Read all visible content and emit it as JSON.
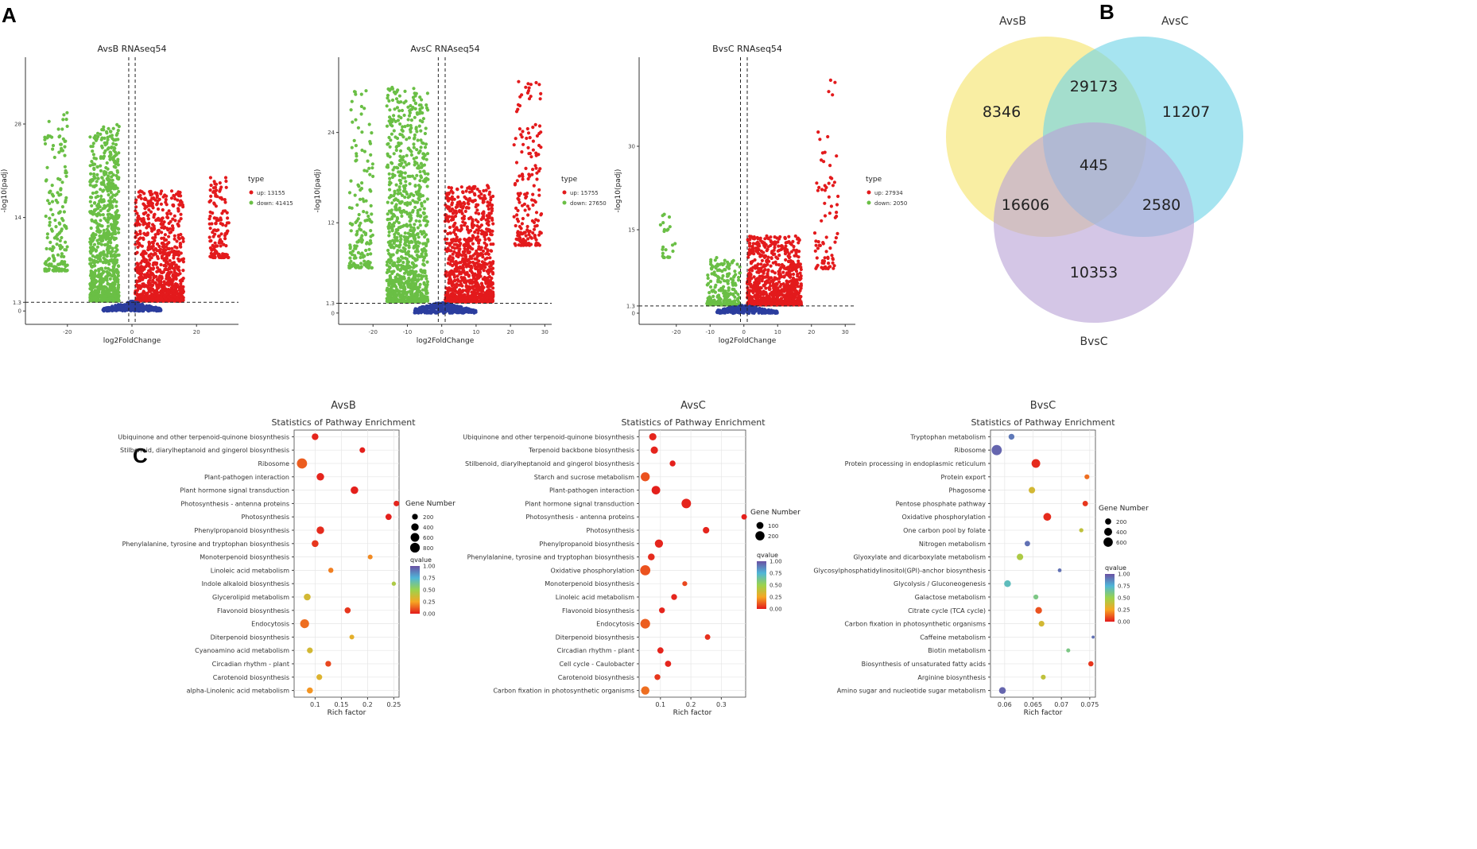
{
  "panels": {
    "A": "A",
    "B": "B",
    "C": "C"
  },
  "chart_data": [
    {
      "type": "scatter",
      "id": "volcano-1",
      "title": "AvsB  RNAseq54",
      "xlabel": "log2FoldChange",
      "ylabel": "-log10(padj)",
      "xlim": [
        -33,
        33
      ],
      "ylim": [
        -2,
        38
      ],
      "xticks": [
        -20,
        0,
        20
      ],
      "yticks": [
        0,
        1.3,
        14,
        28
      ],
      "legend": {
        "title": "type",
        "up": "up: 13155",
        "down": "down: 41415",
        "placement": "right"
      },
      "colors": {
        "up": "#e31a1c",
        "down": "#6abf45",
        "none": "#2b3d9e"
      },
      "threshold": {
        "y": 1.3,
        "x": [
          -1,
          1
        ]
      },
      "clusters": [
        {
          "kind": "down",
          "x": [
            -27,
            -20
          ],
          "y": [
            6,
            30
          ],
          "n": 180
        },
        {
          "kind": "down",
          "x": [
            -13,
            -4
          ],
          "y": [
            1.5,
            28
          ],
          "n": 900
        },
        {
          "kind": "up",
          "x": [
            1,
            16
          ],
          "y": [
            1.5,
            18
          ],
          "n": 900
        },
        {
          "kind": "up",
          "x": [
            24,
            30
          ],
          "y": [
            8,
            20
          ],
          "n": 140
        },
        {
          "kind": "none",
          "x": [
            -9,
            9
          ],
          "y": [
            0,
            1.3
          ],
          "n": 300
        }
      ]
    },
    {
      "type": "scatter",
      "id": "volcano-2",
      "title": "AvsC  RNAseq54",
      "xlabel": "log2FoldChange",
      "ylabel": "-log10(padj)",
      "xlim": [
        -30,
        32
      ],
      "ylim": [
        -1.5,
        34
      ],
      "xticks": [
        -20,
        -10,
        0,
        10,
        20,
        30
      ],
      "yticks": [
        0,
        1.3,
        12,
        24
      ],
      "legend": {
        "title": "type",
        "up": "up: 15755",
        "down": "down: 27650",
        "placement": "right"
      },
      "colors": {
        "up": "#e31a1c",
        "down": "#6abf45",
        "none": "#2b3d9e"
      },
      "threshold": {
        "y": 1.3,
        "x": [
          -1,
          1
        ]
      },
      "clusters": [
        {
          "kind": "down",
          "x": [
            -27,
            -20
          ],
          "y": [
            6,
            30
          ],
          "n": 160
        },
        {
          "kind": "down",
          "x": [
            -16,
            -4
          ],
          "y": [
            1.5,
            30
          ],
          "n": 1000
        },
        {
          "kind": "up",
          "x": [
            1,
            15
          ],
          "y": [
            1.5,
            17
          ],
          "n": 1000
        },
        {
          "kind": "up",
          "x": [
            21,
            29
          ],
          "y": [
            9,
            31
          ],
          "n": 180
        },
        {
          "kind": "none",
          "x": [
            -8,
            10
          ],
          "y": [
            0,
            1.3
          ],
          "n": 300
        }
      ]
    },
    {
      "type": "scatter",
      "id": "volcano-3",
      "title": "BvsC  RNAseq54",
      "xlabel": "log2FoldChange",
      "ylabel": "-log10(padj)",
      "xlim": [
        -31,
        33
      ],
      "ylim": [
        -2,
        46
      ],
      "xticks": [
        -20,
        -10,
        0,
        10,
        20,
        30
      ],
      "yticks": [
        0,
        1.3,
        15,
        30
      ],
      "legend": {
        "title": "type",
        "up": "up: 27934",
        "down": "down: 2050",
        "placement": "right"
      },
      "colors": {
        "up": "#e31a1c",
        "down": "#6abf45",
        "none": "#2b3d9e"
      },
      "threshold": {
        "y": 1.3,
        "x": [
          -1,
          1
        ]
      },
      "clusters": [
        {
          "kind": "down",
          "x": [
            -25,
            -20
          ],
          "y": [
            10,
            18
          ],
          "n": 25
        },
        {
          "kind": "down",
          "x": [
            -11,
            -1
          ],
          "y": [
            1.5,
            10
          ],
          "n": 220
        },
        {
          "kind": "up",
          "x": [
            1,
            17
          ],
          "y": [
            1.5,
            14
          ],
          "n": 900
        },
        {
          "kind": "up",
          "x": [
            21,
            28
          ],
          "y": [
            8,
            42
          ],
          "n": 80
        },
        {
          "kind": "none",
          "x": [
            -8,
            10
          ],
          "y": [
            0,
            1.3
          ],
          "n": 250
        }
      ]
    },
    {
      "type": "venn",
      "id": "venn",
      "sets": [
        "AvsB",
        "AvsC",
        "BvsC"
      ],
      "colors": [
        "#f6e46a",
        "#6fd3e6",
        "#b9a3d6"
      ],
      "regions": {
        "AvsB_only": 8346,
        "AvsC_only": 11207,
        "BvsC_only": 10353,
        "AvsB_AvsC": 29173,
        "AvsB_BvsC": 16606,
        "AvsC_BvsC": 2580,
        "all": 445
      }
    },
    {
      "type": "scatter",
      "id": "kegg-1",
      "title": "AvsB",
      "subtitle": "Statistics of Pathway Enrichment",
      "xlabel": "Rich factor",
      "xlim": [
        0.06,
        0.26
      ],
      "xticks": [
        0.1,
        0.15,
        0.2,
        0.25
      ],
      "size_legend": {
        "title": "Gene Number",
        "values": [
          200,
          400,
          600,
          800
        ]
      },
      "color_legend": {
        "title": "qvalue",
        "ticks": [
          1.0,
          0.75,
          0.5,
          0.25,
          0.0
        ]
      },
      "pathways": [
        "Ubiquinone and other terpenoid-quinone biosynthesis",
        "Stilbenoid, diarylheptanoid and gingerol biosynthesis",
        "Ribosome",
        "Plant-pathogen interaction",
        "Plant hormone signal transduction",
        "Photosynthesis - antenna proteins",
        "Photosynthesis",
        "Phenylpropanoid biosynthesis",
        "Phenylalanine, tyrosine and tryptophan biosynthesis",
        "Monoterpenoid biosynthesis",
        "Linoleic acid metabolism",
        "Indole alkaloid biosynthesis",
        "Glycerolipid metabolism",
        "Flavonoid biosynthesis",
        "Endocytosis",
        "Diterpenoid biosynthesis",
        "Cyanoamino acid metabolism",
        "Circadian rhythm - plant",
        "Carotenoid biosynthesis",
        "alpha-Linolenic acid metabolism"
      ],
      "rich_factor": [
        0.1,
        0.19,
        0.075,
        0.11,
        0.175,
        0.255,
        0.24,
        0.11,
        0.1,
        0.205,
        0.13,
        0.25,
        0.085,
        0.162,
        0.08,
        0.17,
        0.09,
        0.125,
        0.108,
        0.09
      ],
      "gene_number": [
        300,
        180,
        900,
        420,
        420,
        180,
        240,
        420,
        320,
        110,
        140,
        70,
        320,
        230,
        640,
        110,
        200,
        200,
        200,
        230
      ],
      "qvalue": [
        0.02,
        0.01,
        0.12,
        0.02,
        0.01,
        0.02,
        0.01,
        0.03,
        0.05,
        0.2,
        0.18,
        0.45,
        0.35,
        0.05,
        0.15,
        0.3,
        0.35,
        0.08,
        0.32,
        0.22
      ]
    },
    {
      "type": "scatter",
      "id": "kegg-2",
      "title": "AvsC",
      "subtitle": "Statistics of Pathway Enrichment",
      "xlabel": "Rich factor",
      "xlim": [
        0.03,
        0.38
      ],
      "xticks": [
        0.1,
        0.2,
        0.3
      ],
      "size_legend": {
        "title": "Gene Number",
        "values": [
          100,
          200
        ]
      },
      "color_legend": {
        "title": "qvalue",
        "ticks": [
          1.0,
          0.75,
          0.5,
          0.25,
          0.0
        ]
      },
      "pathways": [
        "Ubiquinone and other terpenoid-quinone biosynthesis",
        "Terpenoid backbone biosynthesis",
        "Stilbenoid, diarylheptanoid and gingerol biosynthesis",
        "Starch and sucrose metabolism",
        "Plant-pathogen interaction",
        "Plant hormone signal transduction",
        "Photosynthesis - antenna proteins",
        "Photosynthesis",
        "Phenylpropanoid biosynthesis",
        "Phenylalanine, tyrosine and tryptophan biosynthesis",
        "Oxidative phosphorylation",
        "Monoterpenoid biosynthesis",
        "Linoleic acid metabolism",
        "Flavonoid biosynthesis",
        "Endocytosis",
        "Diterpenoid biosynthesis",
        "Circadian rhythm - plant",
        "Cell cycle - Caulobacter",
        "Carotenoid biosynthesis",
        "Carbon fixation in photosynthetic organisms"
      ],
      "rich_factor": [
        0.075,
        0.08,
        0.14,
        0.05,
        0.085,
        0.185,
        0.375,
        0.25,
        0.095,
        0.07,
        0.05,
        0.18,
        0.145,
        0.105,
        0.05,
        0.255,
        0.1,
        0.125,
        0.09,
        0.05
      ],
      "gene_number": [
        110,
        110,
        60,
        190,
        170,
        220,
        50,
        80,
        150,
        90,
        260,
        35,
        60,
        60,
        230,
        50,
        70,
        70,
        60,
        160
      ],
      "qvalue": [
        0.02,
        0.02,
        0.01,
        0.1,
        0.01,
        0.02,
        0.01,
        0.02,
        0.02,
        0.03,
        0.1,
        0.08,
        0.02,
        0.02,
        0.12,
        0.04,
        0.02,
        0.02,
        0.05,
        0.15
      ]
    },
    {
      "type": "scatter",
      "id": "kegg-3",
      "title": "BvsC",
      "subtitle": "Statistics of Pathway Enrichment",
      "xlabel": "Rich factor",
      "xlim": [
        0.0575,
        0.076
      ],
      "xticks": [
        0.06,
        0.065,
        0.07,
        0.075
      ],
      "size_legend": {
        "title": "Gene Number",
        "values": [
          200,
          400,
          600
        ]
      },
      "color_legend": {
        "title": "qvalue",
        "ticks": [
          1.0,
          0.75,
          0.5,
          0.25,
          0.0
        ]
      },
      "pathways": [
        "Tryptophan metabolism",
        "Ribosome",
        "Protein processing in endoplasmic reticulum",
        "Protein export",
        "Phagosome",
        "Pentose phosphate pathway",
        "Oxidative phosphorylation",
        "One carbon pool by folate",
        "Nitrogen metabolism",
        "Glyoxylate and dicarboxylate metabolism",
        "Glycosylphosphatidylinositol(GPI)-anchor biosynthesis",
        "Glycolysis / Gluconeogenesis",
        "Galactose metabolism",
        "Citrate cycle (TCA cycle)",
        "Carbon fixation in photosynthetic organisms",
        "Caffeine metabolism",
        "Biotin metabolism",
        "Biosynthesis of unsaturated fatty acids",
        "Arginine biosynthesis",
        "Amino sugar and nucleotide sugar metabolism"
      ],
      "rich_factor": [
        0.0612,
        0.0586,
        0.0655,
        0.0745,
        0.0648,
        0.0742,
        0.0675,
        0.0735,
        0.064,
        0.0627,
        0.0697,
        0.0605,
        0.0655,
        0.066,
        0.0665,
        0.0756,
        0.0712,
        0.0752,
        0.0668,
        0.0596
      ],
      "gene_number": [
        170,
        750,
        500,
        100,
        230,
        140,
        380,
        60,
        140,
        230,
        40,
        260,
        100,
        250,
        160,
        15,
        50,
        120,
        100,
        260
      ],
      "qvalue": [
        0.9,
        0.95,
        0.03,
        0.15,
        0.35,
        0.05,
        0.03,
        0.4,
        0.92,
        0.45,
        0.92,
        0.7,
        0.6,
        0.1,
        0.35,
        0.92,
        0.6,
        0.05,
        0.4,
        0.95
      ]
    }
  ]
}
